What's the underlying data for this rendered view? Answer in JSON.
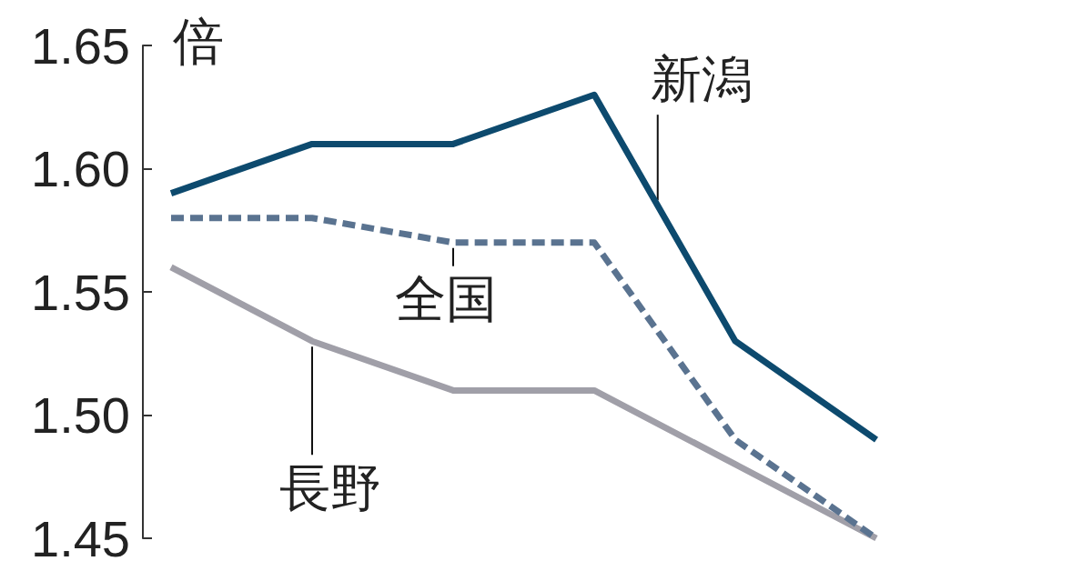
{
  "chart_data": {
    "type": "line",
    "ylabel": "倍",
    "categories": [
      null,
      null,
      null,
      null,
      null,
      null
    ],
    "series": [
      {
        "name": "新潟",
        "color": "#0d4a6e",
        "line_style": "solid",
        "values": [
          1.59,
          1.61,
          1.61,
          1.63,
          1.53,
          1.49
        ]
      },
      {
        "name": "全国",
        "color": "#5a7390",
        "line_style": "dashed",
        "values": [
          1.58,
          1.58,
          1.57,
          1.57,
          1.49,
          1.45
        ]
      },
      {
        "name": "長野",
        "color": "#a09fa8",
        "line_style": "solid",
        "values": [
          1.56,
          1.53,
          1.51,
          1.51,
          1.48,
          1.45
        ]
      }
    ],
    "ylim": [
      1.45,
      1.65
    ],
    "yticks": [
      {
        "value": 1.45,
        "label": "1.45"
      },
      {
        "value": 1.5,
        "label": "1.50"
      },
      {
        "value": 1.55,
        "label": "1.55"
      },
      {
        "value": 1.6,
        "label": "1.60"
      },
      {
        "value": 1.65,
        "label": "1.65"
      }
    ],
    "tick_labels": "y",
    "marker": "none"
  }
}
